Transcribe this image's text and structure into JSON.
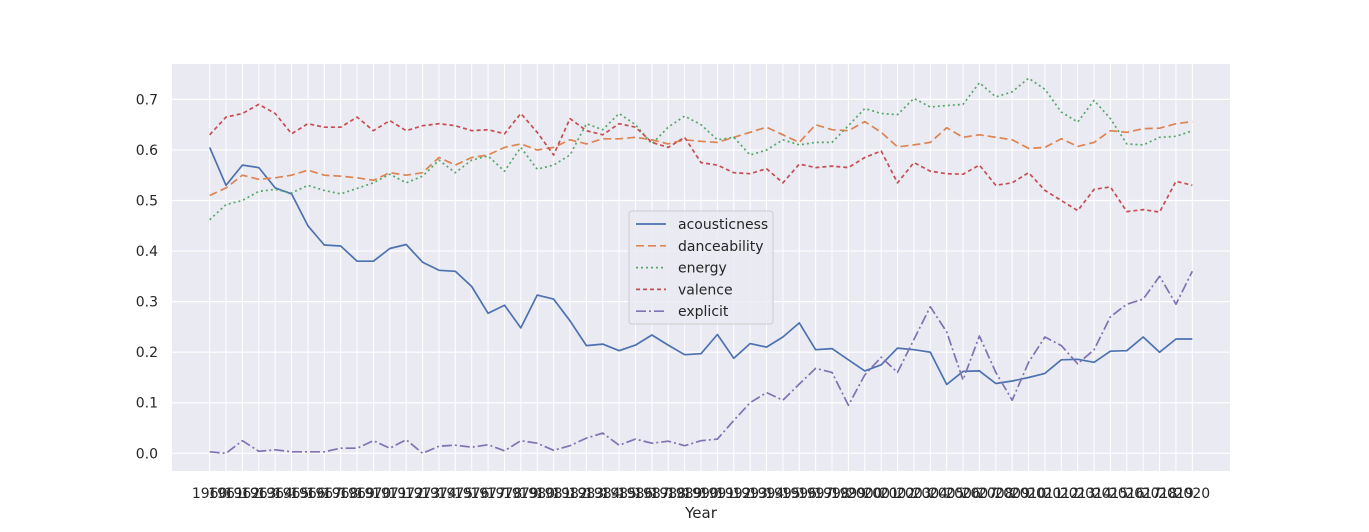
{
  "chart_data": {
    "type": "line",
    "title": "",
    "xlabel": "Year",
    "ylabel": "",
    "ylim": [
      -0.035,
      0.77
    ],
    "xlim": [
      1957.7,
      2022.3
    ],
    "grid": true,
    "legend_position": "center",
    "yticks": [
      0.0,
      0.1,
      0.2,
      0.3,
      0.4,
      0.5,
      0.6,
      0.7
    ],
    "x": [
      1960,
      1961,
      1962,
      1963,
      1964,
      1965,
      1966,
      1967,
      1968,
      1969,
      1970,
      1971,
      1972,
      1973,
      1974,
      1975,
      1976,
      1977,
      1978,
      1979,
      1980,
      1981,
      1982,
      1983,
      1984,
      1985,
      1986,
      1987,
      1988,
      1989,
      1990,
      1991,
      1992,
      1993,
      1994,
      1995,
      1996,
      1997,
      1998,
      1999,
      2000,
      2001,
      2002,
      2003,
      2004,
      2005,
      2006,
      2007,
      2008,
      2009,
      2010,
      2011,
      2012,
      2013,
      2014,
      2015,
      2016,
      2017,
      2018,
      2019,
      2020
    ],
    "series": [
      {
        "name": "acousticness",
        "color": "#4c72b0",
        "dash": "",
        "values": [
          0.605,
          0.53,
          0.57,
          0.565,
          0.525,
          0.513,
          0.45,
          0.412,
          0.41,
          0.38,
          0.38,
          0.405,
          0.413,
          0.378,
          0.362,
          0.36,
          0.33,
          0.277,
          0.293,
          0.248,
          0.313,
          0.305,
          0.262,
          0.213,
          0.216,
          0.203,
          0.214,
          0.234,
          0.214,
          0.195,
          0.197,
          0.235,
          0.188,
          0.217,
          0.21,
          0.23,
          0.258,
          0.205,
          0.207,
          0.185,
          0.163,
          0.175,
          0.208,
          0.205,
          0.2,
          0.136,
          0.162,
          0.163,
          0.138,
          0.143,
          0.15,
          0.158,
          0.185,
          0.186,
          0.18,
          0.202,
          0.203,
          0.23,
          0.2,
          0.226,
          0.226
        ]
      },
      {
        "name": "danceability",
        "color": "#dd8452",
        "dash": "8,4",
        "values": [
          0.51,
          0.525,
          0.55,
          0.542,
          0.545,
          0.55,
          0.56,
          0.55,
          0.548,
          0.545,
          0.54,
          0.555,
          0.55,
          0.555,
          0.585,
          0.57,
          0.585,
          0.59,
          0.605,
          0.612,
          0.6,
          0.605,
          0.62,
          0.612,
          0.622,
          0.622,
          0.625,
          0.62,
          0.612,
          0.62,
          0.617,
          0.615,
          0.625,
          0.635,
          0.645,
          0.63,
          0.615,
          0.65,
          0.64,
          0.638,
          0.656,
          0.635,
          0.606,
          0.61,
          0.615,
          0.644,
          0.625,
          0.63,
          0.625,
          0.62,
          0.603,
          0.605,
          0.622,
          0.607,
          0.615,
          0.638,
          0.635,
          0.642,
          0.643,
          0.652,
          0.656
        ]
      },
      {
        "name": "energy",
        "color": "#55a868",
        "dash": "2,3",
        "values": [
          0.462,
          0.492,
          0.5,
          0.518,
          0.522,
          0.515,
          0.53,
          0.52,
          0.513,
          0.524,
          0.535,
          0.552,
          0.535,
          0.548,
          0.58,
          0.555,
          0.58,
          0.588,
          0.558,
          0.605,
          0.562,
          0.57,
          0.59,
          0.652,
          0.64,
          0.672,
          0.65,
          0.612,
          0.645,
          0.667,
          0.65,
          0.62,
          0.625,
          0.59,
          0.6,
          0.62,
          0.61,
          0.615,
          0.615,
          0.648,
          0.682,
          0.672,
          0.67,
          0.702,
          0.685,
          0.688,
          0.69,
          0.733,
          0.705,
          0.715,
          0.742,
          0.72,
          0.675,
          0.655,
          0.698,
          0.662,
          0.612,
          0.61,
          0.625,
          0.627,
          0.638
        ]
      },
      {
        "name": "valence",
        "color": "#c44e52",
        "dash": "4,3",
        "values": [
          0.63,
          0.665,
          0.672,
          0.69,
          0.672,
          0.632,
          0.652,
          0.645,
          0.645,
          0.665,
          0.638,
          0.658,
          0.638,
          0.648,
          0.652,
          0.648,
          0.638,
          0.64,
          0.632,
          0.672,
          0.635,
          0.59,
          0.662,
          0.638,
          0.63,
          0.652,
          0.645,
          0.615,
          0.605,
          0.625,
          0.575,
          0.57,
          0.555,
          0.553,
          0.563,
          0.535,
          0.572,
          0.565,
          0.568,
          0.565,
          0.585,
          0.598,
          0.535,
          0.575,
          0.558,
          0.553,
          0.552,
          0.57,
          0.53,
          0.535,
          0.555,
          0.52,
          0.5,
          0.48,
          0.522,
          0.527,
          0.478,
          0.482,
          0.477,
          0.538,
          0.53
        ]
      },
      {
        "name": "explicit",
        "color": "#8172b3",
        "dash": "10,3,2,3",
        "values": [
          0.003,
          0.0,
          0.025,
          0.004,
          0.007,
          0.003,
          0.003,
          0.003,
          0.01,
          0.01,
          0.025,
          0.01,
          0.027,
          0.0,
          0.014,
          0.016,
          0.012,
          0.017,
          0.005,
          0.025,
          0.02,
          0.006,
          0.015,
          0.03,
          0.04,
          0.016,
          0.028,
          0.02,
          0.024,
          0.015,
          0.025,
          0.028,
          0.065,
          0.1,
          0.12,
          0.105,
          0.137,
          0.168,
          0.16,
          0.095,
          0.155,
          0.19,
          0.16,
          0.225,
          0.29,
          0.24,
          0.145,
          0.232,
          0.16,
          0.105,
          0.18,
          0.23,
          0.213,
          0.177,
          0.205,
          0.27,
          0.295,
          0.305,
          0.35,
          0.295,
          0.36
        ]
      }
    ]
  }
}
